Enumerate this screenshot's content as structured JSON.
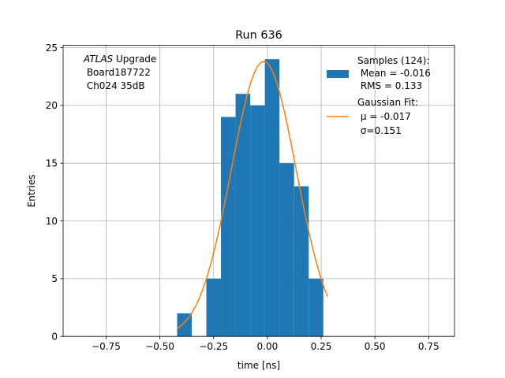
{
  "chart_data": {
    "type": "bar",
    "title": "Run 636",
    "xlabel": "time [ns]",
    "ylabel": "Entries",
    "xlim": [
      -0.95,
      0.87
    ],
    "ylim": [
      0,
      25.2
    ],
    "grid": true,
    "xticks": [
      -0.75,
      -0.5,
      -0.25,
      0.0,
      0.25,
      0.5,
      0.75
    ],
    "xtick_labels": [
      "−0.75",
      "−0.50",
      "−0.25",
      "0.00",
      "0.25",
      "0.50",
      "0.75"
    ],
    "yticks": [
      0,
      5,
      10,
      15,
      20,
      25
    ],
    "ytick_labels": [
      "0",
      "5",
      "10",
      "15",
      "20",
      "25"
    ],
    "histogram": {
      "bin_edges": [
        -0.42,
        -0.352,
        -0.284,
        -0.216,
        -0.148,
        -0.08,
        -0.012,
        0.056,
        0.124,
        0.192,
        0.26
      ],
      "counts": [
        2,
        0,
        5,
        19,
        21,
        20,
        24,
        15,
        13,
        5
      ],
      "color": "#1f77b4"
    },
    "gaussian_fit": {
      "mu": -0.017,
      "sigma": 0.151,
      "amplitude": 23.8,
      "x_range": [
        -0.42,
        0.28
      ],
      "color": "#ff7f0e"
    },
    "annotation": {
      "italic": "ATLAS",
      "line1_rest": " Upgrade",
      "line2": " Board187722",
      "line3": " Ch024 35dB"
    },
    "legend": {
      "placement": "top-right",
      "entries": [
        {
          "lines": [
            "Samples (124):",
            " Mean = -0.016",
            " RMS = 0.133"
          ],
          "kind": "patch"
        },
        {
          "lines": [
            "Gaussian Fit:",
            " μ = -0.017",
            " σ=0.151"
          ],
          "kind": "line"
        }
      ]
    }
  }
}
